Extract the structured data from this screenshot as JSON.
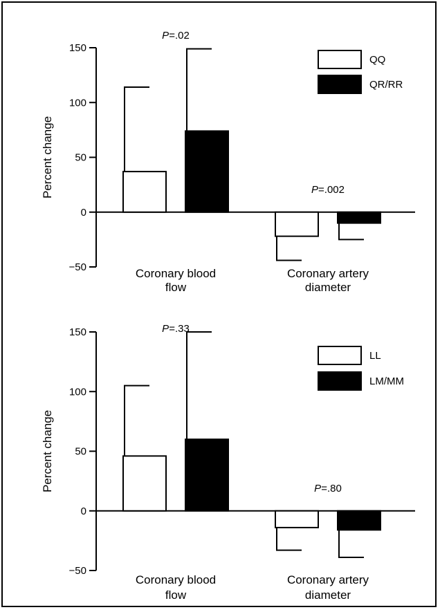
{
  "chart_data": [
    {
      "type": "bar",
      "ylabel": "Percent change",
      "ylim": [
        -50,
        150
      ],
      "yticks": [
        -50,
        0,
        50,
        100,
        150
      ],
      "ytick_labels": [
        "−50",
        "0",
        "50",
        "100",
        "150"
      ],
      "categories": [
        {
          "lines": [
            "Coronary blood",
            "flow"
          ]
        },
        {
          "lines": [
            "Coronary artery",
            "diameter"
          ]
        }
      ],
      "series": [
        {
          "name": "QQ",
          "color": "#ffffff",
          "values": [
            37,
            -22
          ],
          "errors": [
            77,
            22
          ]
        },
        {
          "name": "QR/RR",
          "color": "#000000",
          "values": [
            74,
            -10
          ],
          "errors": [
            75,
            15
          ]
        }
      ],
      "annotations": [
        {
          "category": 0,
          "p": "P",
          "text": "=.02"
        },
        {
          "category": 1,
          "p": "P",
          "text": "=.002"
        }
      ],
      "legend": "top-right",
      "grid": false
    },
    {
      "type": "bar",
      "ylabel": "Percent change",
      "ylim": [
        -50,
        150
      ],
      "yticks": [
        -50,
        0,
        50,
        100,
        150
      ],
      "ytick_labels": [
        "−50",
        "0",
        "50",
        "100",
        "150"
      ],
      "categories": [
        {
          "lines": [
            "Coronary blood",
            "flow"
          ]
        },
        {
          "lines": [
            "Coronary artery",
            "diameter"
          ]
        }
      ],
      "series": [
        {
          "name": "LL",
          "color": "#ffffff",
          "values": [
            46,
            -14
          ],
          "errors": [
            59,
            19
          ]
        },
        {
          "name": "LM/MM",
          "color": "#000000",
          "values": [
            60,
            -16
          ],
          "errors": [
            90,
            23
          ]
        }
      ],
      "annotations": [
        {
          "category": 0,
          "p": "P",
          "text": "=.33"
        },
        {
          "category": 1,
          "p": "P",
          "text": "=.80"
        }
      ],
      "legend": "top-right",
      "grid": false
    }
  ]
}
